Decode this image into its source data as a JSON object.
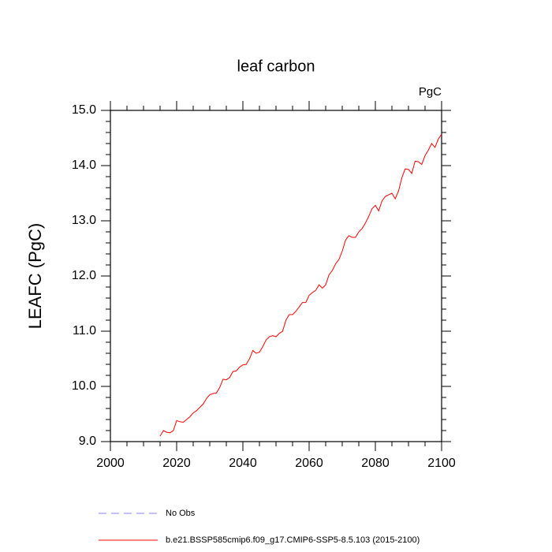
{
  "chart_data": {
    "type": "line",
    "title": "leaf carbon",
    "units_label": "PgC",
    "y_label": "LEAFC  (PgC)",
    "x": [
      2015,
      2016,
      2017,
      2018,
      2019,
      2020,
      2021,
      2022,
      2023,
      2024,
      2025,
      2026,
      2027,
      2028,
      2029,
      2030,
      2031,
      2032,
      2033,
      2034,
      2035,
      2036,
      2037,
      2038,
      2039,
      2040,
      2041,
      2042,
      2043,
      2044,
      2045,
      2046,
      2047,
      2048,
      2049,
      2050,
      2051,
      2052,
      2053,
      2054,
      2055,
      2056,
      2057,
      2058,
      2059,
      2060,
      2061,
      2062,
      2063,
      2064,
      2065,
      2066,
      2067,
      2068,
      2069,
      2070,
      2071,
      2072,
      2073,
      2074,
      2075,
      2076,
      2077,
      2078,
      2079,
      2080,
      2081,
      2082,
      2083,
      2084,
      2085,
      2086,
      2087,
      2088,
      2089,
      2090,
      2091,
      2092,
      2093,
      2094,
      2095,
      2096,
      2097,
      2098,
      2099,
      2100
    ],
    "series": [
      {
        "name": "No Obs",
        "color": "#8080ff",
        "dashed": true,
        "values": [
          null,
          null,
          null,
          null,
          null,
          null,
          null,
          null,
          null,
          null,
          null,
          null,
          null,
          null,
          null,
          null,
          null,
          null,
          null,
          null,
          null,
          null,
          null,
          null,
          null,
          null,
          null,
          null,
          null,
          null,
          null,
          null,
          null,
          null,
          null,
          null,
          null,
          null,
          null,
          null,
          null,
          null,
          null,
          null,
          null,
          null,
          null,
          null,
          null,
          null,
          null,
          null,
          null,
          null,
          null,
          null,
          null,
          null,
          null,
          null,
          null,
          null,
          null,
          null,
          null,
          null,
          null,
          null,
          null,
          null,
          null,
          null,
          null,
          null,
          null,
          null,
          null,
          null,
          null,
          null,
          null,
          null,
          null,
          null,
          null,
          null
        ]
      },
      {
        "name": "b.e21.BSSP585cmip6.f09_g17.CMIP6-SSP5-8.5.103 (2015-2100)",
        "color": "#ff0000",
        "dashed": false,
        "values": [
          9.1,
          9.2,
          9.17,
          9.16,
          9.2,
          9.38,
          9.36,
          9.35,
          9.4,
          9.45,
          9.52,
          9.56,
          9.62,
          9.68,
          9.78,
          9.85,
          9.87,
          9.88,
          9.98,
          10.13,
          10.12,
          10.16,
          10.27,
          10.28,
          10.35,
          10.39,
          10.4,
          10.5,
          10.65,
          10.6,
          10.62,
          10.72,
          10.84,
          10.9,
          10.92,
          10.9,
          10.96,
          11.0,
          11.2,
          11.3,
          11.3,
          11.36,
          11.44,
          11.52,
          11.52,
          11.65,
          11.7,
          11.74,
          11.84,
          11.78,
          11.84,
          12.02,
          12.1,
          12.22,
          12.3,
          12.45,
          12.65,
          12.73,
          12.7,
          12.7,
          12.8,
          12.86,
          12.96,
          13.08,
          13.22,
          13.28,
          13.18,
          13.36,
          13.44,
          13.47,
          13.5,
          13.4,
          13.54,
          13.78,
          13.94,
          13.93,
          13.86,
          14.08,
          14.07,
          14.02,
          14.18,
          14.28,
          14.4,
          14.33,
          14.48,
          14.57
        ]
      }
    ],
    "xlim": [
      2000,
      2100
    ],
    "ylim": [
      9,
      15
    ],
    "xticks": [
      2000,
      2020,
      2040,
      2060,
      2080,
      2100
    ],
    "yticks": [
      {
        "value": 9,
        "label": "9.0"
      },
      {
        "value": 10,
        "label": "10.0"
      },
      {
        "value": 11,
        "label": "11.0"
      },
      {
        "value": 12,
        "label": "12.0"
      },
      {
        "value": 13,
        "label": "13.0"
      },
      {
        "value": 14,
        "label": "14.0"
      },
      {
        "value": 15,
        "label": "15.0"
      }
    ],
    "xminorticks": [
      2005,
      2010,
      2015,
      2025,
      2030,
      2035,
      2045,
      2050,
      2055,
      2065,
      2070,
      2075,
      2085,
      2090,
      2095
    ],
    "yminorticks": [
      9.2,
      9.4,
      9.6,
      9.8,
      10.2,
      10.4,
      10.6,
      10.8,
      11.2,
      11.4,
      11.6,
      11.8,
      12.2,
      12.4,
      12.6,
      12.8,
      13.2,
      13.4,
      13.6,
      13.8,
      14.2,
      14.4,
      14.6,
      14.8
    ],
    "grid": false
  }
}
